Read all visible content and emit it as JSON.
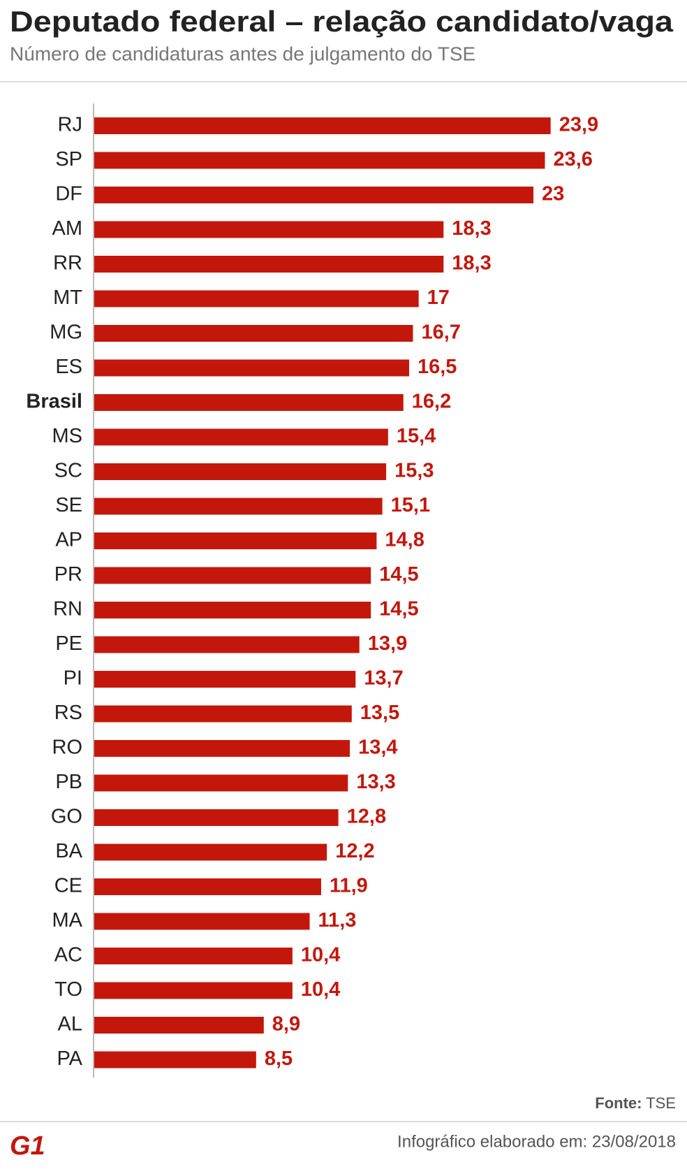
{
  "chart_data": {
    "type": "hbar",
    "title": "Deputado federal – relação candidato/vaga",
    "subtitle": "Número de candidaturas antes de julgamento do TSE",
    "categories": [
      "RJ",
      "SP",
      "DF",
      "AM",
      "RR",
      "MT",
      "MG",
      "ES",
      "Brasil",
      "MS",
      "SC",
      "SE",
      "AP",
      "PR",
      "RN",
      "PE",
      "PI",
      "RS",
      "RO",
      "PB",
      "GO",
      "BA",
      "CE",
      "MA",
      "AC",
      "TO",
      "AL",
      "PA"
    ],
    "values": [
      23.9,
      23.6,
      23,
      18.3,
      18.3,
      17,
      16.7,
      16.5,
      16.2,
      15.4,
      15.3,
      15.1,
      14.8,
      14.5,
      14.5,
      13.9,
      13.7,
      13.5,
      13.4,
      13.3,
      12.8,
      12.2,
      11.9,
      11.3,
      10.4,
      10.4,
      8.9,
      8.5
    ],
    "value_labels": [
      "23,9",
      "23,6",
      "23",
      "18,3",
      "18,3",
      "17",
      "16,7",
      "16,5",
      "16,2",
      "15,4",
      "15,3",
      "15,1",
      "14,8",
      "14,5",
      "14,5",
      "13,9",
      "13,7",
      "13,5",
      "13,4",
      "13,3",
      "12,8",
      "12,2",
      "11,9",
      "11,3",
      "10,4",
      "10,4",
      "8,9",
      "8,5"
    ],
    "highlight_category": "Brasil",
    "color": "#c4170c",
    "xlim": [
      0,
      28
    ],
    "source_label": "Fonte:",
    "source": "TSE",
    "footer": "Infográfico elaborado em: 23/08/2018",
    "logo": "G1"
  }
}
